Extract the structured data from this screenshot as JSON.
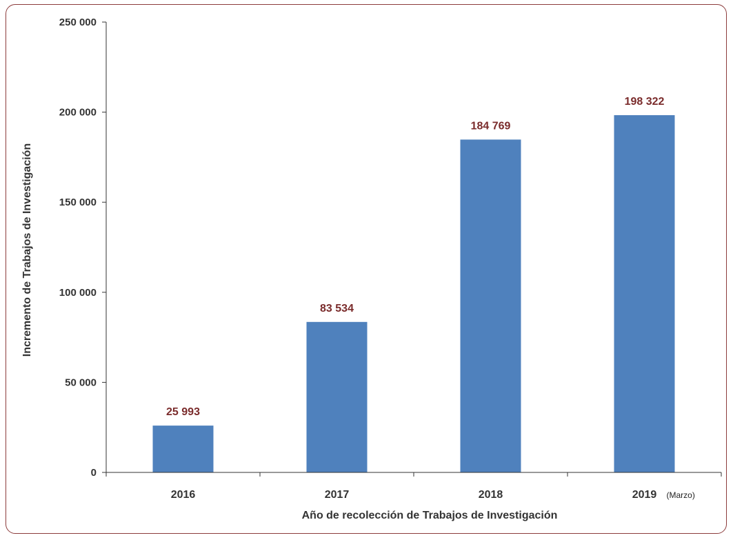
{
  "chart_data": {
    "type": "bar",
    "categories": [
      "2016",
      "2017",
      "2018",
      "2019"
    ],
    "values": [
      25993,
      83534,
      184769,
      198322
    ],
    "value_labels": [
      "25 993",
      "83 534",
      "184 769",
      "198 322"
    ],
    "category_note": {
      "index": 3,
      "text": "(Marzo)"
    },
    "xlabel": "Año de recolección de Trabajos de Investigación",
    "ylabel": "Incremento de Trabajos de Investigación",
    "ylim": [
      0,
      250000
    ],
    "yticks": [
      0,
      50000,
      100000,
      150000,
      200000,
      250000
    ],
    "ytick_labels": [
      "0",
      "50 000",
      "100 000",
      "150 000",
      "200 000",
      "250 000"
    ],
    "grid": false,
    "legend": "none",
    "bar_color": "#4f81bd",
    "value_label_color": "#7a2b2b",
    "frame_color": "#8b3a3a"
  }
}
